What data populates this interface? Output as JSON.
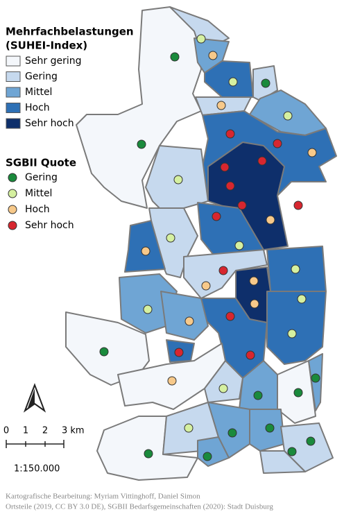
{
  "legend": {
    "suhei": {
      "title": "Mehrfachbelastungen",
      "subtitle": "(SUHEI-Index)",
      "items": [
        {
          "label": "Sehr gering",
          "color": "#f4f7fb"
        },
        {
          "label": "Gering",
          "color": "#c6d9ee"
        },
        {
          "label": "Mittel",
          "color": "#6fa5d4"
        },
        {
          "label": "Hoch",
          "color": "#2e70b5"
        },
        {
          "label": "Sehr hoch",
          "color": "#0e2f6b"
        }
      ]
    },
    "sgbii": {
      "title": "SGBII Quote",
      "items": [
        {
          "label": "Gering",
          "color": "#1a8a3c"
        },
        {
          "label": "Mittel",
          "color": "#d5f0a0"
        },
        {
          "label": "Hoch",
          "color": "#f7c98a"
        },
        {
          "label": "Sehr hoch",
          "color": "#d7262f"
        }
      ]
    }
  },
  "scale": {
    "labels": [
      "0",
      "1",
      "2",
      "3 km"
    ],
    "ratio": "1:150.000"
  },
  "credits": [
    "Kartografische Bearbeitung: Myriam Vittinghoff, Daniel Simon",
    "Ortsteile (2019, CC BY 3.0 DE), SGBII Bedarfsgemeinschaften (2020): Stadt Duisburg"
  ]
}
